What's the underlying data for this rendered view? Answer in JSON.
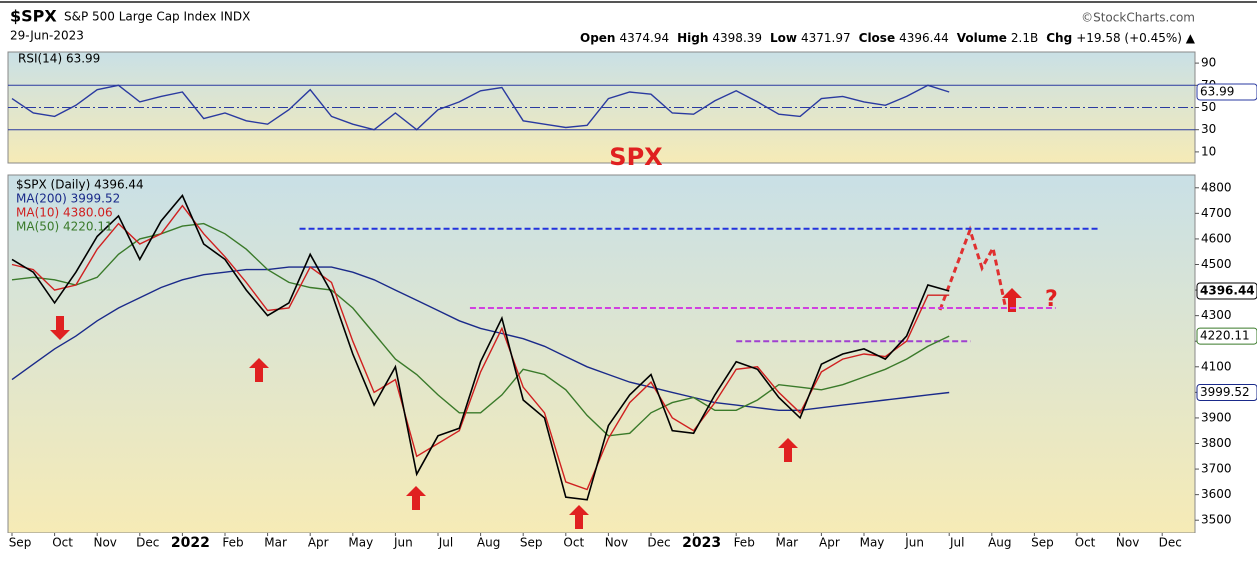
{
  "header": {
    "symbol": "$SPX",
    "name": "S&P 500 Large Cap Index  INDX",
    "date": "29-Jun-2023",
    "source": "©StockCharts.com",
    "quote": [
      {
        "label": "Open",
        "value": "4374.94"
      },
      {
        "label": "High",
        "value": "4398.39"
      },
      {
        "label": "Low",
        "value": "4371.97"
      },
      {
        "label": "Close",
        "value": "4396.44"
      },
      {
        "label": "Volume",
        "value": "2.1B"
      },
      {
        "label": "Chg",
        "value": "+19.58 (+0.45%) ▲"
      }
    ]
  },
  "chart_data": [
    {
      "type": "line",
      "legend": "RSI(14) 63.99",
      "ylim": [
        0,
        100
      ],
      "yticks": [
        10,
        30,
        50,
        70,
        90
      ],
      "levels": [
        70,
        50,
        30
      ],
      "series": [
        {
          "name": "RSI(14)",
          "color": "#2a3aa0",
          "values": [
            58,
            45,
            42,
            52,
            66,
            70,
            55,
            60,
            64,
            40,
            45,
            38,
            35,
            48,
            66,
            42,
            35,
            30,
            45,
            30,
            48,
            55,
            65,
            68,
            38,
            35,
            32,
            34,
            58,
            64,
            62,
            45,
            44,
            56,
            65,
            55,
            44,
            42,
            58,
            60,
            55,
            52,
            60,
            70,
            63.99,
            null,
            null,
            null,
            null,
            null,
            null,
            null,
            null,
            null,
            null,
            null
          ]
        }
      ]
    },
    {
      "type": "line",
      "title": "SPX",
      "annotation": "?",
      "categories": [
        "Sep",
        null,
        "Oct",
        null,
        "Nov",
        null,
        "Dec",
        null,
        "2022",
        null,
        "Feb",
        null,
        "Mar",
        null,
        "Apr",
        null,
        "May",
        null,
        "Jun",
        null,
        "Jul",
        null,
        "Aug",
        null,
        "Sep",
        null,
        "Oct",
        null,
        "Nov",
        null,
        "Dec",
        null,
        "2023",
        null,
        "Feb",
        null,
        "Mar",
        null,
        "Apr",
        null,
        "May",
        null,
        "Jun",
        null,
        "Jul",
        null,
        "Aug",
        null,
        "Sep",
        null,
        "Oct",
        null,
        "Nov",
        null,
        "Dec",
        null
      ],
      "ylim": [
        3450,
        4850
      ],
      "yticks": [
        3500,
        3600,
        3700,
        3800,
        3900,
        4000,
        4100,
        4200,
        4300,
        4400,
        4500,
        4600,
        4700,
        4800
      ],
      "reference_lines": [
        {
          "value": 4640,
          "color": "#2233dd"
        },
        {
          "value": 4330,
          "color": "#d040e0"
        },
        {
          "value": 4200,
          "color": "#a040d0"
        }
      ],
      "series": [
        {
          "name": "$SPX (Daily) 4396.44",
          "color": "#000000",
          "values": [
            4520,
            4470,
            4350,
            4470,
            4610,
            4690,
            4520,
            4670,
            4770,
            4580,
            4520,
            4400,
            4300,
            4350,
            4540,
            4390,
            4150,
            3950,
            4100,
            3680,
            3830,
            3860,
            4120,
            4290,
            3970,
            3900,
            3590,
            3580,
            3870,
            3990,
            4070,
            3850,
            3840,
            3990,
            4120,
            4090,
            3980,
            3900,
            4110,
            4150,
            4170,
            4130,
            4220,
            4420,
            4396.44,
            null,
            null,
            null,
            null,
            null,
            null,
            null,
            null,
            null,
            null,
            null
          ]
        },
        {
          "name": "MA(200) 3999.52",
          "color": "#1a2a8a",
          "values": [
            4050,
            4110,
            4170,
            4220,
            4280,
            4330,
            4370,
            4410,
            4440,
            4460,
            4470,
            4480,
            4480,
            4490,
            4490,
            4490,
            4470,
            4440,
            4400,
            4360,
            4320,
            4280,
            4250,
            4230,
            4210,
            4180,
            4140,
            4100,
            4070,
            4040,
            4020,
            4000,
            3980,
            3960,
            3950,
            3940,
            3930,
            3930,
            3940,
            3950,
            3960,
            3970,
            3980,
            3990,
            3999.52,
            null,
            null,
            null,
            null,
            null,
            null,
            null,
            null,
            null,
            null,
            null
          ]
        },
        {
          "name": "MA(10) 4380.06",
          "color": "#d02020",
          "values": [
            4500,
            4480,
            4400,
            4420,
            4560,
            4660,
            4580,
            4620,
            4730,
            4620,
            4530,
            4430,
            4320,
            4330,
            4490,
            4430,
            4200,
            4000,
            4050,
            3750,
            3800,
            3850,
            4080,
            4250,
            4020,
            3920,
            3650,
            3620,
            3820,
            3960,
            4040,
            3900,
            3850,
            3960,
            4090,
            4100,
            4000,
            3920,
            4080,
            4130,
            4150,
            4140,
            4200,
            4380,
            4380.06,
            null,
            null,
            null,
            null,
            null,
            null,
            null,
            null,
            null,
            null,
            null
          ]
        },
        {
          "name": "MA(50) 4220.11",
          "color": "#3a7a2a",
          "values": [
            4440,
            4450,
            4440,
            4420,
            4450,
            4540,
            4600,
            4620,
            4650,
            4660,
            4620,
            4560,
            4480,
            4430,
            4410,
            4400,
            4330,
            4230,
            4130,
            4070,
            3990,
            3920,
            3920,
            3990,
            4090,
            4070,
            4010,
            3910,
            3830,
            3840,
            3920,
            3960,
            3980,
            3930,
            3930,
            3970,
            4030,
            4020,
            4010,
            4030,
            4060,
            4090,
            4130,
            4180,
            4220.11,
            null,
            null,
            null,
            null,
            null,
            null,
            null,
            null,
            null,
            null,
            null
          ]
        }
      ]
    }
  ]
}
